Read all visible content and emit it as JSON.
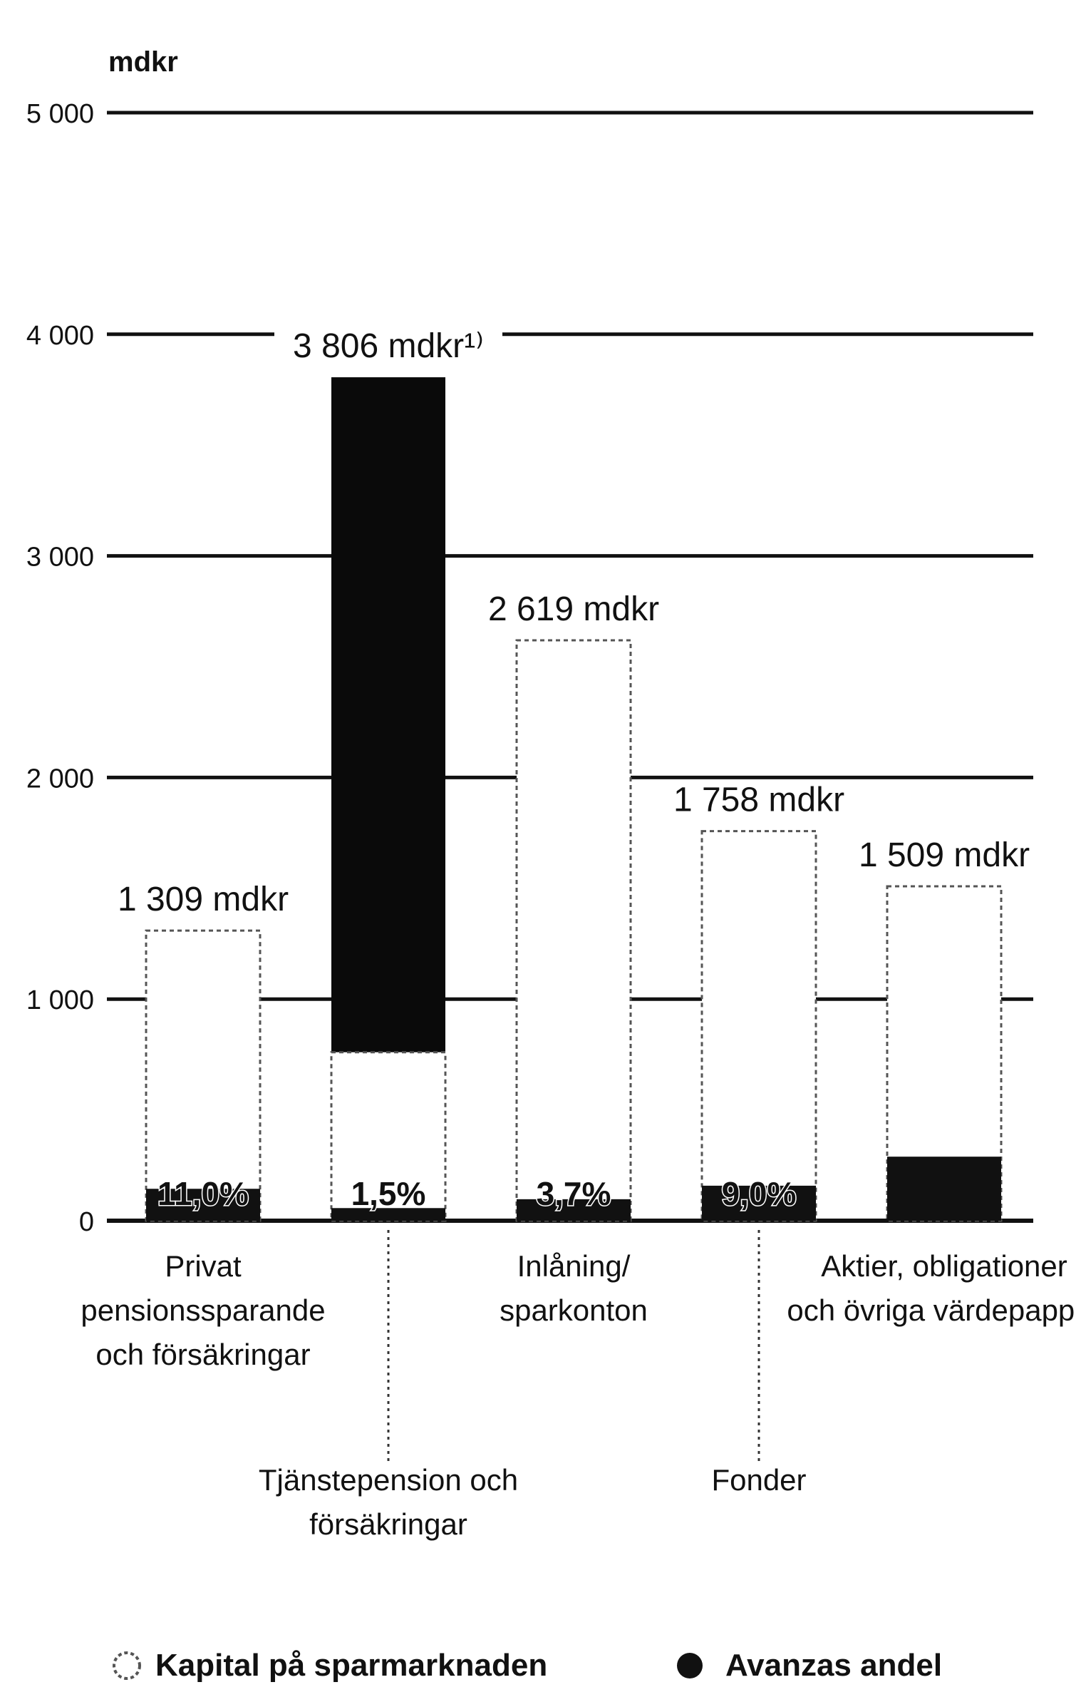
{
  "chart_data": {
    "type": "bar",
    "unit_label": "mdkr",
    "ylim": [
      0,
      5000
    ],
    "yticks": [
      {
        "value": 0,
        "label": "0"
      },
      {
        "value": 1000,
        "label": "1 000"
      },
      {
        "value": 2000,
        "label": "2 000"
      },
      {
        "value": 3000,
        "label": "3 000"
      },
      {
        "value": 4000,
        "label": "4 000"
      },
      {
        "value": 5000,
        "label": "5 000"
      }
    ],
    "grid": true,
    "categories": [
      {
        "label": [
          "Privat",
          "pensionssparande",
          "och försäkringar"
        ],
        "label_position": "upper"
      },
      {
        "label": [
          "Tjänstepension och",
          "försäkringar"
        ],
        "label_position": "lower"
      },
      {
        "label": [
          "Inlåning/",
          "sparkonton"
        ],
        "label_position": "upper"
      },
      {
        "label": [
          "Fonder"
        ],
        "label_position": "lower"
      },
      {
        "label": [
          "Aktier, obligationer",
          "och övriga värdepapper"
        ],
        "label_position": "upper"
      }
    ],
    "series": [
      {
        "name": "Kapital på sparmarknaden",
        "values": [
          1309,
          3806,
          2619,
          1758,
          1509
        ],
        "value_labels": [
          "1 309 mdkr",
          "3 806 mdkr¹⁾",
          "2 619 mdkr",
          "1 758 mdkr",
          "1 509 mdkr"
        ]
      },
      {
        "name": "Avanzas andel",
        "values": [
          144,
          57,
          97,
          158,
          289
        ],
        "value_labels": [
          "11,0%",
          "1,5%",
          "3,7%",
          "9,0%",
          ""
        ]
      }
    ],
    "legend_position": "bottom"
  },
  "colors": {
    "total_bar_fill": "#ffffff",
    "total_bar_outline": "#555555",
    "tjanste_bar_fill": "#0a0a0a",
    "share_fill": "#111111",
    "grid": "#111111",
    "text": "#111111"
  }
}
